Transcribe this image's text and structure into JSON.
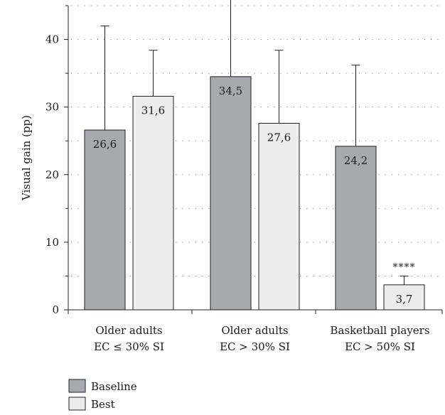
{
  "chart_data": {
    "type": "bar",
    "ylabel": "Visual gain (pp)",
    "ylim": [
      0,
      45
    ],
    "yticks": [
      0,
      10,
      20,
      30,
      40
    ],
    "grid": true,
    "categories": [
      {
        "line1": "Older adults",
        "line2": "EC ≤ 30% SI"
      },
      {
        "line1": "Older adults",
        "line2": "EC > 30% SI"
      },
      {
        "line1": "Basketball players",
        "line2": "EC > 50% SI"
      }
    ],
    "series": [
      {
        "name": "Baseline",
        "color": "#a6a9ae",
        "values": [
          26.6,
          34.5,
          24.2
        ],
        "labels": [
          "26,6",
          "34,5",
          "24,2"
        ],
        "error_upper": [
          42.0,
          47.0,
          36.2
        ]
      },
      {
        "name": "Best",
        "color": "#ececec",
        "values": [
          31.6,
          27.6,
          3.7
        ],
        "labels": [
          "31,6",
          "27,6",
          "3,7"
        ],
        "error_upper": [
          38.4,
          38.4,
          5.0
        ]
      }
    ],
    "annotations": [
      {
        "text": "****",
        "series": 1,
        "category": 2
      }
    ],
    "legend": {
      "position": "bottom-left"
    }
  }
}
